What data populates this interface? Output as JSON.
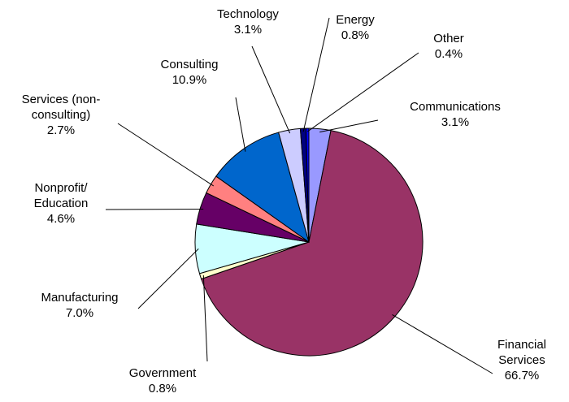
{
  "chart_data": {
    "type": "pie",
    "categories": [
      "Communications",
      "Financial Services",
      "Government",
      "Manufacturing",
      "Nonprofit/ Education",
      "Services (non-consulting)",
      "Consulting",
      "Technology",
      "Energy",
      "Other"
    ],
    "values": [
      3.1,
      66.7,
      0.8,
      7.0,
      4.6,
      2.7,
      10.9,
      3.1,
      0.8,
      0.4
    ],
    "value_labels": [
      "3.1%",
      "66.7%",
      "0.8%",
      "7.0%",
      "4.6%",
      "2.7%",
      "10.9%",
      "3.1%",
      "0.8%",
      "0.4%"
    ],
    "colors": [
      "#9999FF",
      "#993366",
      "#FFFFCC",
      "#CCFFFF",
      "#660066",
      "#FF8080",
      "#0066CC",
      "#CCCCFF",
      "#000080",
      "#0000FF"
    ]
  }
}
